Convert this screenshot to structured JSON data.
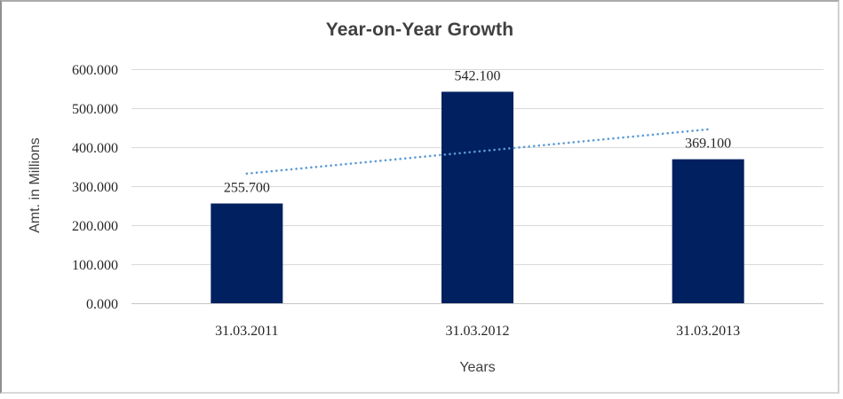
{
  "chart_data": {
    "type": "bar",
    "title": "Year-on-Year Growth",
    "xlabel": "Years",
    "ylabel": "Amt. in Millions",
    "categories": [
      "31.03.2011",
      "31.03.2012",
      "31.03.2013"
    ],
    "values": [
      255.7,
      542.1,
      369.1
    ],
    "data_labels": [
      "255.700",
      "542.100",
      "369.100"
    ],
    "ylim": [
      0,
      600
    ],
    "ytick_step": 100,
    "ytick_labels": [
      "0.000",
      "100.000",
      "200.000",
      "300.000",
      "400.000",
      "500.000",
      "600.000"
    ],
    "grid": true,
    "legend": "none",
    "trendline": {
      "type": "linear",
      "style": "dotted"
    },
    "colors": {
      "bar": "#002060",
      "trendline": "#5b9bd5",
      "gridline": "#d9d9d9",
      "axis_line": "#c6c6c6",
      "title_text": "#404040",
      "tick_text": "#262626"
    }
  }
}
